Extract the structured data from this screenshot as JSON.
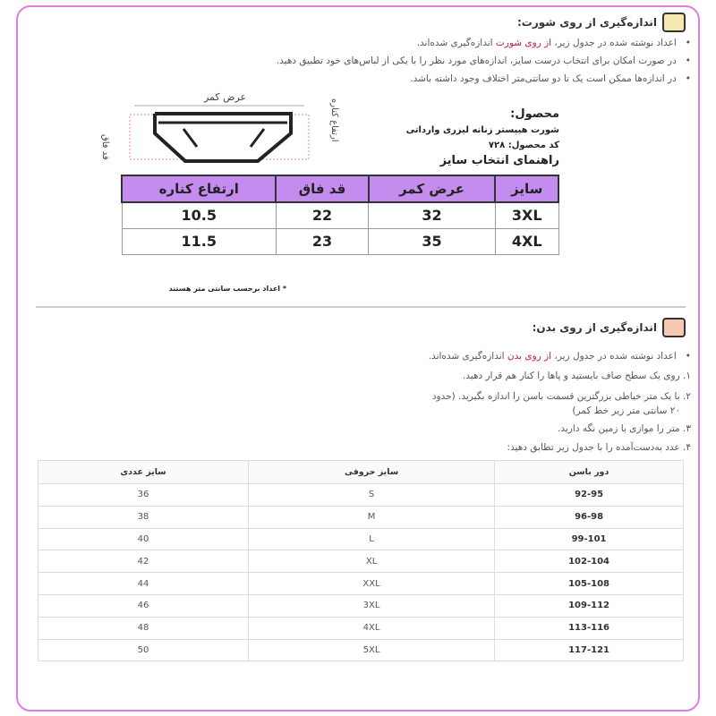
{
  "shorts_section": {
    "title": "اندازه‌گیری از روی شورت:",
    "icon": "shirt-measure-icon",
    "bullets": [
      {
        "pre": "اعداد نوشته شده در جدول زیر، ",
        "hl": "از روی شورت",
        "post": " اندازه‌گیری شده‌اند."
      },
      {
        "pre": "در صورت امکان برای انتخاب درست سایز، اندازه‌های مورد نظر را با یکی از لباس‌های خود تطبیق دهید.",
        "hl": "",
        "post": ""
      },
      {
        "pre": "در اندازه‌ها ممکن است یک تا دو سانتی‌متر اختلاف وجود داشته باشد.",
        "hl": "",
        "post": ""
      }
    ]
  },
  "product": {
    "diagram_label_top": "عرض کمر",
    "diagram_label_left": "قد فاق",
    "diagram_label_right": "ارتفاع کناره",
    "label": "محصول:",
    "name": "شورت هیپستر زنانه لیزری وارداتی",
    "code": "کد محصول: ۷۲۸",
    "guide_title": "راهنمای انتخاب سایز",
    "table": {
      "headers": [
        "سایز",
        "عرض کمر",
        "قد فاق",
        "ارتفاع کناره"
      ],
      "rows": [
        [
          "3XL",
          "32",
          "22",
          "10.5"
        ],
        [
          "4XL",
          "35",
          "23",
          "11.5"
        ]
      ]
    },
    "note": "اعداد برحسب سانتی متر هستند"
  },
  "body_section": {
    "title": "اندازه‌گیری از روی بدن:",
    "icon": "body-measure-icon",
    "bullet": {
      "pre": "اعداد نوشته شده در جدول زیر، ",
      "hl": "از روی بدن",
      "post": " اندازه‌گیری شده‌اند."
    },
    "steps": [
      "۱. روی یک سطح صاف بایستید و پاها را کنار هم قرار دهید.",
      "۲. با یک متر خیاطی بزرگترین قسمت باسن را اندازه بگیرید. (حدود",
      "۲۰ سانتی متر زیر خط کمر)",
      "۳. متر را موازی با زمین نگه دارید.",
      "۴. عدد به‌دست‌آمده را با جدول زیر تطابق دهید:"
    ],
    "table": {
      "headers": [
        "دور باسن",
        "سایز حروفی",
        "سایز عددی"
      ],
      "rows": [
        [
          "92-95",
          "S",
          "36"
        ],
        [
          "96-98",
          "M",
          "38"
        ],
        [
          "99-101",
          "L",
          "40"
        ],
        [
          "102-104",
          "XL",
          "42"
        ],
        [
          "105-108",
          "XXL",
          "44"
        ],
        [
          "109-112",
          "3XL",
          "46"
        ],
        [
          "113-116",
          "4XL",
          "48"
        ],
        [
          "117-121",
          "5XL",
          "50"
        ]
      ]
    }
  },
  "colors": {
    "accent": "#c2185b",
    "table_header": "#c58cf0",
    "frame": "#e07de0"
  }
}
